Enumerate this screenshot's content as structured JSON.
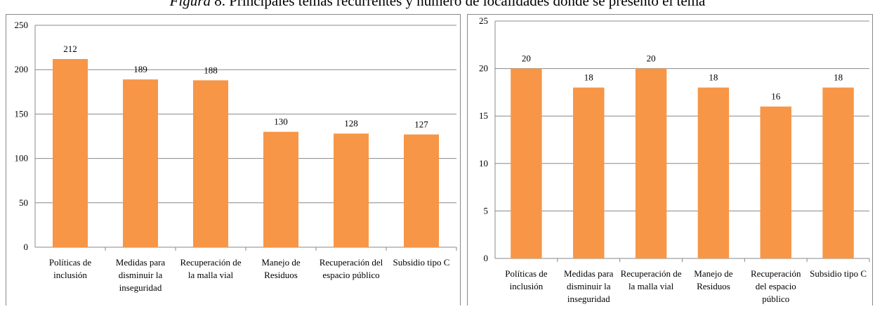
{
  "caption": {
    "label": "Figura",
    "text": "8. Principales temas recurrentes y número de localidades donde se presentó el tema"
  },
  "chart_data": [
    {
      "type": "bar",
      "categories": [
        "Políticas de inclusión",
        "Medidas para disminuir la inseguridad",
        "Recuperación de la  malla vial",
        "Manejo de Residuos",
        "Recuperación del espacio público",
        "Subsidio tipo C"
      ],
      "values": [
        212,
        189,
        188,
        130,
        128,
        127
      ],
      "color": "#f79646",
      "ylim": [
        0,
        250
      ],
      "yticks": [
        0,
        50,
        100,
        150,
        200,
        250
      ],
      "grid": true
    },
    {
      "type": "bar",
      "categories": [
        "Políticas de inclusión",
        "Medidas para disminuir la inseguridad",
        "Recuperación de la  malla vial",
        "Manejo de Residuos",
        "Recuperación del espacio público",
        "Subsidio tipo C"
      ],
      "values": [
        20,
        18,
        20,
        18,
        16,
        18
      ],
      "color": "#f79646",
      "ylim": [
        0,
        25
      ],
      "yticks": [
        0,
        5,
        10,
        15,
        20,
        25
      ],
      "grid": true
    }
  ]
}
